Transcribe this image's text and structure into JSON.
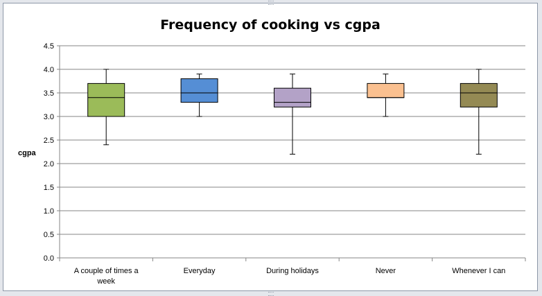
{
  "chart_data": {
    "type": "box",
    "title": "Frequency of cooking vs cgpa",
    "ylabel": "cgpa",
    "xlabel": "",
    "ylim": [
      0,
      4.5
    ],
    "yticks": [
      "0.0",
      "0.5",
      "1.0",
      "1.5",
      "2.0",
      "2.5",
      "3.0",
      "3.5",
      "4.0",
      "4.5"
    ],
    "grid": true,
    "categories": [
      {
        "label_lines": [
          "A couple of times a",
          "week"
        ],
        "min": 2.4,
        "q1": 3.0,
        "median": 3.4,
        "q3": 3.7,
        "max": 4.0,
        "color": "#9bbb59"
      },
      {
        "label_lines": [
          "Everyday"
        ],
        "min": 3.0,
        "q1": 3.3,
        "median": 3.5,
        "q3": 3.8,
        "max": 3.9,
        "color": "#558ed5"
      },
      {
        "label_lines": [
          "During holidays"
        ],
        "min": 2.2,
        "q1": 3.2,
        "median": 3.3,
        "q3": 3.6,
        "max": 3.9,
        "color": "#b3a2c7"
      },
      {
        "label_lines": [
          "Never"
        ],
        "min": 3.0,
        "q1": 3.4,
        "median": 3.4,
        "q3": 3.7,
        "max": 3.9,
        "color": "#fac090"
      },
      {
        "label_lines": [
          "Whenever I can"
        ],
        "min": 2.2,
        "q1": 3.2,
        "median": 3.5,
        "q3": 3.7,
        "max": 4.0,
        "color": "#948a54"
      }
    ]
  }
}
